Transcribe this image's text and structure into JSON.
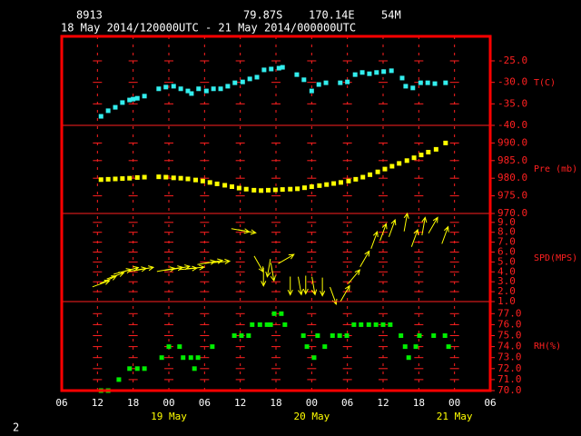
{
  "header": {
    "station": "8913",
    "lat": "79.87S",
    "lon": "170.14E",
    "elev": "54M",
    "period": "18 May 2014/120000UTC - 21 May 2014/000000UTC",
    "page": "2"
  },
  "chart_data": [
    {
      "type": "scatter",
      "ylabel": "T(C)",
      "color": "#33eeee",
      "x": [
        12.6,
        13.8,
        15.0,
        16.2,
        17.4,
        18.0,
        18.7,
        19.9,
        22.3,
        23.5,
        24.8,
        26.0,
        27.2,
        27.8,
        29.0,
        30.3,
        31.5,
        32.7,
        33.9,
        35.1,
        36.4,
        37.6,
        38.8,
        40.0,
        41.2,
        42.5,
        43.1,
        45.5,
        46.7,
        48.0,
        49.2,
        50.4,
        52.8,
        54.0,
        55.3,
        56.5,
        57.7,
        58.9,
        60.1,
        61.4,
        63.2,
        63.8,
        65.0,
        66.3,
        67.5,
        68.7,
        70.5
      ],
      "values": [
        -37.9,
        -36.6,
        -35.8,
        -34.7,
        -34.1,
        -33.9,
        -33.7,
        -33.2,
        -31.5,
        -31.1,
        -30.9,
        -31.5,
        -32.0,
        -32.6,
        -31.5,
        -32.0,
        -31.5,
        -31.5,
        -30.9,
        -30.1,
        -29.9,
        -29.2,
        -28.8,
        -27.1,
        -26.9,
        -26.7,
        -26.5,
        -28.2,
        -29.4,
        -32.0,
        -30.5,
        -30.1,
        -30.1,
        -29.9,
        -28.2,
        -27.7,
        -28.0,
        -27.7,
        -27.5,
        -27.3,
        -29.0,
        -30.9,
        -31.3,
        -30.1,
        -30.1,
        -30.3,
        -30.1
      ],
      "ylim": [
        -40,
        -19.3
      ],
      "yticks": [
        {
          "value": -25,
          "label": "-25.0"
        },
        {
          "value": -30,
          "label": "-30.0"
        },
        {
          "value": -35,
          "label": "-35.0"
        },
        {
          "value": -40,
          "label": "-40.0"
        }
      ]
    },
    {
      "type": "scatter",
      "ylabel": "Pre (mb)",
      "color": "#ffff00",
      "x": [
        12.6,
        13.8,
        15.0,
        16.2,
        17.4,
        18.7,
        19.9,
        22.3,
        23.5,
        24.8,
        26.0,
        27.2,
        28.5,
        29.7,
        30.9,
        32.1,
        33.4,
        34.6,
        35.8,
        37.0,
        38.3,
        39.5,
        40.7,
        41.9,
        43.1,
        44.4,
        45.6,
        46.8,
        48.0,
        49.3,
        50.5,
        51.7,
        52.9,
        54.2,
        55.4,
        56.6,
        57.8,
        59.1,
        60.3,
        61.5,
        62.7,
        64.0,
        65.2,
        66.4,
        67.6,
        68.9,
        70.5
      ],
      "values": [
        979.6,
        979.7,
        979.8,
        979.9,
        980.0,
        980.2,
        980.3,
        980.4,
        980.3,
        980.1,
        980.0,
        979.8,
        979.5,
        979.2,
        978.8,
        978.4,
        978.0,
        977.6,
        977.2,
        976.9,
        976.6,
        976.5,
        976.6,
        976.7,
        976.8,
        976.9,
        977.0,
        977.3,
        977.6,
        977.9,
        978.2,
        978.5,
        978.8,
        979.2,
        979.7,
        980.3,
        981.0,
        981.8,
        982.6,
        983.4,
        984.2,
        985.0,
        985.8,
        986.6,
        987.4,
        988.2,
        990.0
      ],
      "ylim": [
        970,
        995
      ],
      "yticks": [
        {
          "value": 990,
          "label": "990.0"
        },
        {
          "value": 985,
          "label": "985.0"
        },
        {
          "value": 980,
          "label": "980.0"
        },
        {
          "value": 975,
          "label": "975.0"
        },
        {
          "value": 970,
          "label": "970.0"
        }
      ]
    },
    {
      "type": "quiver",
      "ylabel": "SPD(MPS)",
      "color": "#ffff00",
      "x": [
        12.6,
        13.8,
        15.0,
        16.2,
        17.4,
        18.7,
        19.9,
        23.5,
        24.8,
        26.0,
        27.2,
        28.4,
        30.3,
        31.5,
        32.7,
        36.0,
        37.1,
        39.1,
        39.9,
        40.8,
        41.4,
        43.7,
        44.4,
        46.0,
        47.0,
        48.3,
        49.8,
        51.6,
        53.6,
        55.1,
        56.9,
        58.5,
        60.0,
        61.5,
        63.8,
        65.3,
        66.8,
        68.4,
        70.4
      ],
      "values": [
        2.8,
        3.2,
        3.6,
        4.0,
        4.2,
        4.2,
        4.3,
        4.2,
        4.3,
        4.4,
        4.3,
        4.4,
        4.9,
        5.0,
        5.0,
        8.2,
        8.1,
        4.8,
        3.5,
        4.4,
        4.0,
        5.3,
        2.6,
        2.6,
        2.7,
        2.6,
        2.5,
        1.6,
        1.8,
        3.5,
        5.3,
        7.2,
        8.0,
        8.4,
        9.0,
        7.4,
        8.6,
        8.7,
        7.7
      ],
      "angles": [
        20,
        25,
        20,
        15,
        15,
        10,
        10,
        10,
        10,
        10,
        5,
        5,
        10,
        10,
        5,
        -10,
        -10,
        -60,
        -90,
        -100,
        -80,
        30,
        -90,
        -80,
        -90,
        -80,
        -90,
        -70,
        60,
        50,
        60,
        70,
        70,
        70,
        80,
        70,
        80,
        60,
        70
      ],
      "ylim": [
        1,
        9.9
      ],
      "yticks": [
        {
          "value": 9,
          "label": "9.0"
        },
        {
          "value": 8,
          "label": "8.0"
        },
        {
          "value": 7,
          "label": "7.0"
        },
        {
          "value": 6,
          "label": "6.0"
        },
        {
          "value": 5,
          "label": "5.0"
        },
        {
          "value": 4,
          "label": "4.0"
        },
        {
          "value": 3,
          "label": "3.0"
        },
        {
          "value": 2,
          "label": "2.0"
        },
        {
          "value": 1,
          "label": "1.0"
        }
      ]
    },
    {
      "type": "scatter",
      "ylabel": "RH(%)",
      "color": "#00ee00",
      "x": [
        12.6,
        13.8,
        15.6,
        17.4,
        18.7,
        19.9,
        22.8,
        24.0,
        25.8,
        26.4,
        27.7,
        28.3,
        28.9,
        31.3,
        35.0,
        36.2,
        37.4,
        38.0,
        39.3,
        40.5,
        41.1,
        41.7,
        42.9,
        43.5,
        46.6,
        47.2,
        48.4,
        49.0,
        50.2,
        51.5,
        52.7,
        53.9,
        55.1,
        56.3,
        57.6,
        58.8,
        60.0,
        61.2,
        63.0,
        63.7,
        64.3,
        65.5,
        66.1,
        68.5,
        70.4,
        71.0
      ],
      "values": [
        70,
        70,
        71,
        72,
        72,
        72,
        73,
        74,
        74,
        73,
        73,
        72,
        73,
        74,
        75,
        75,
        75,
        76,
        76,
        76,
        76,
        77,
        77,
        76,
        75,
        74,
        73,
        75,
        74,
        75,
        75,
        75,
        76,
        76,
        76,
        76,
        76,
        76,
        75,
        74,
        73,
        74,
        75,
        75,
        75,
        74
      ],
      "ylim": [
        70,
        78.1
      ],
      "yticks": [
        {
          "value": 77,
          "label": "77.0"
        },
        {
          "value": 76,
          "label": "76.0"
        },
        {
          "value": 75,
          "label": "75.0"
        },
        {
          "value": 74,
          "label": "74.0"
        },
        {
          "value": 73,
          "label": "73.0"
        },
        {
          "value": 72,
          "label": "72.0"
        },
        {
          "value": 71,
          "label": "71.0"
        },
        {
          "value": 70,
          "label": "70.0"
        }
      ],
      "xlim": [
        6,
        78
      ],
      "xticks": [
        {
          "value": 6,
          "label": "06"
        },
        12,
        18,
        {
          "value": 24,
          "label": "00"
        },
        {
          "value": 30,
          "label": "06"
        },
        {
          "value": 36,
          "label": "12"
        },
        {
          "value": 42,
          "label": "18"
        },
        {
          "value": 48,
          "label": "00"
        },
        {
          "value": 54,
          "label": "06"
        },
        {
          "value": 60,
          "label": "12"
        },
        {
          "value": 66,
          "label": "18"
        },
        {
          "value": 72,
          "label": "00"
        },
        {
          "value": 78,
          "label": "06"
        }
      ],
      "xdates": [
        {
          "value": 24,
          "label": "19 May"
        },
        {
          "value": 48,
          "label": "20 May"
        },
        {
          "value": 72,
          "label": "21 May"
        }
      ]
    }
  ]
}
